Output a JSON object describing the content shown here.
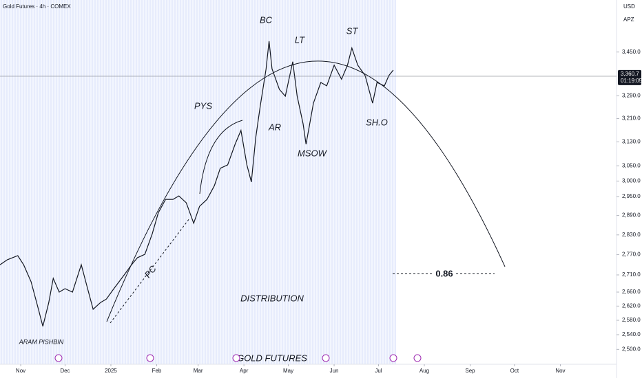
{
  "chart_data": {
    "type": "line",
    "title": "Gold Futures · 4h · COMEX",
    "currency": "USD",
    "scale_mode": "APZ",
    "log_scale": true,
    "grid": false,
    "x": [
      -14,
      -9,
      -2,
      2,
      7,
      12,
      15,
      19,
      22,
      26,
      30,
      35,
      41,
      44,
      49,
      54,
      58,
      63,
      70,
      75,
      79,
      84,
      89,
      93,
      98,
      103,
      107,
      112,
      117,
      121,
      126,
      131,
      135,
      140,
      145,
      149,
      153,
      156,
      159,
      162,
      166,
      168,
      170,
      175,
      179,
      184,
      187,
      191,
      193,
      198,
      203,
      207,
      212,
      217,
      221,
      224,
      228,
      233,
      238,
      241,
      246,
      249,
      252
    ],
    "series": [
      {
        "name": "Gold Futures",
        "color": "#131722",
        "values": [
          2740,
          2755,
          2767,
          2740,
          2690,
          2611,
          2563,
          2630,
          2700,
          2660,
          2670,
          2660,
          2740,
          2690,
          2611,
          2630,
          2640,
          2670,
          2710,
          2740,
          2761,
          2771,
          2834,
          2898,
          2941,
          2941,
          2952,
          2930,
          2866,
          2919,
          2941,
          2985,
          3042,
          3053,
          3122,
          3169,
          3053,
          2997,
          3145,
          3252,
          3388,
          3491,
          3388,
          3313,
          3289,
          3414,
          3289,
          3192,
          3122,
          3264,
          3338,
          3326,
          3401,
          3350,
          3401,
          3465,
          3401,
          3363,
          3264,
          3338,
          3326,
          3363,
          3383
        ]
      }
    ],
    "last_price": {
      "value": 3360.7,
      "label": "3,360.7"
    },
    "countdown": "01:19:05",
    "xlim": [
      -14,
      403
    ],
    "xticks": [
      {
        "value": 0,
        "label": "Nov"
      },
      {
        "value": 30,
        "label": "Dec"
      },
      {
        "value": 61,
        "label": "2025"
      },
      {
        "value": 92,
        "label": "Feb"
      },
      {
        "value": 120,
        "label": "Mar"
      },
      {
        "value": 151,
        "label": "Apr"
      },
      {
        "value": 181,
        "label": "May"
      },
      {
        "value": 212,
        "label": "Jun"
      },
      {
        "value": 242,
        "label": "Jul"
      },
      {
        "value": 273,
        "label": "Aug"
      },
      {
        "value": 304,
        "label": "Sep"
      },
      {
        "value": 334,
        "label": "Oct"
      },
      {
        "value": 365,
        "label": "Nov"
      }
    ],
    "ylim": [
      2460,
      3650
    ],
    "yticks": [
      {
        "value": 3450,
        "label": "3,450.0"
      },
      {
        "value": 3290,
        "label": "3,290.0"
      },
      {
        "value": 3210,
        "label": "3,210.0"
      },
      {
        "value": 3130,
        "label": "3,130.0"
      },
      {
        "value": 3050,
        "label": "3,050.0"
      },
      {
        "value": 3000,
        "label": "3,000.0"
      },
      {
        "value": 2950,
        "label": "2,950.0"
      },
      {
        "value": 2890,
        "label": "2,890.0"
      },
      {
        "value": 2830,
        "label": "2,830.0"
      },
      {
        "value": 2770,
        "label": "2,770.0"
      },
      {
        "value": 2710,
        "label": "2,710.0"
      },
      {
        "value": 2660,
        "label": "2,660.0"
      },
      {
        "value": 2620,
        "label": "2,620.0"
      },
      {
        "value": 2580,
        "label": "2,580.0"
      },
      {
        "value": 2540,
        "label": "2,540.0"
      },
      {
        "value": 2500,
        "label": "2,500.0"
      }
    ],
    "annotations": {
      "bc": "BC",
      "lt": "LT",
      "st": "ST",
      "pys": "PYS",
      "ar": "AR",
      "msow": "MSOW",
      "sho": "SH.O",
      "pc": "PC",
      "distribution": "DISTRIBUTION",
      "gold_futures": "GOLD FUTURES",
      "author": "ARAM PISHBIN",
      "ratio": "0.86"
    }
  }
}
